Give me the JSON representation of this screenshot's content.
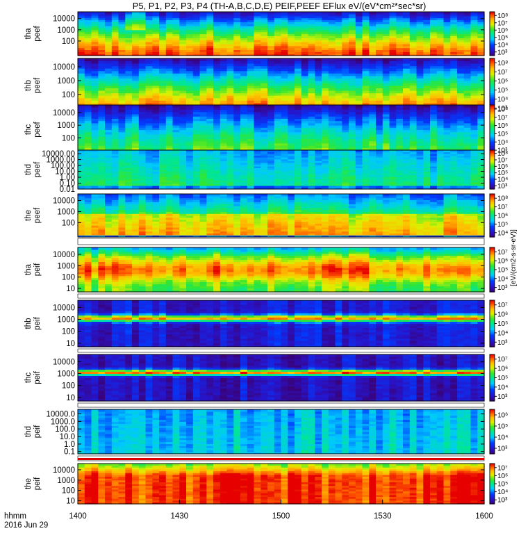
{
  "title": "P5, P1, P2, P3, P4 (TH-A,B,C,D,E) PEIF,PEEF EFlux eV/(eV*cm²*sec*sr)",
  "time_axis": {
    "label_line1": "hhmm",
    "label_line2": "2016 Jun 29",
    "ticks": [
      "1400",
      "1430",
      "1500",
      "1530",
      "1600"
    ]
  },
  "colorbar_unit": "[eV/(cm2-s-sr-eV)]",
  "chart_data": [
    {
      "type": "heatmap",
      "probe": "tha",
      "species": "peef",
      "ylabel": [
        "tha",
        "peef"
      ],
      "ylim": [
        5,
        40000
      ],
      "log": true,
      "y_ticks": [
        "100",
        "1000",
        "10000"
      ],
      "cbar_ticks": [
        "10³",
        "10⁴",
        "10⁵",
        "10⁶",
        "10⁷",
        "10⁸"
      ],
      "cbar_range": [
        3,
        8
      ]
    },
    {
      "type": "heatmap",
      "probe": "thb",
      "species": "peef",
      "ylabel": [
        "thb",
        "peef"
      ],
      "ylim": [
        5,
        40000
      ],
      "log": true,
      "y_ticks": [
        "100",
        "1000",
        "10000"
      ],
      "cbar_ticks": [
        "10³",
        "10⁴",
        "10⁵",
        "10⁶",
        "10⁷",
        "10⁸"
      ],
      "cbar_range": [
        3,
        8
      ]
    },
    {
      "type": "heatmap",
      "probe": "thc",
      "species": "peef",
      "ylabel": [
        "thc",
        "peef"
      ],
      "ylim": [
        5,
        40000
      ],
      "log": true,
      "y_ticks": [
        "100",
        "1000",
        "10000"
      ],
      "cbar_ticks": [
        "10³",
        "10⁴",
        "10⁵",
        "10⁶",
        "10⁷",
        "10⁸"
      ],
      "cbar_range": [
        3,
        8
      ]
    },
    {
      "type": "heatmap",
      "probe": "thd",
      "species": "peef",
      "ylabel": [
        "thd",
        "peef"
      ],
      "ylim": [
        0.01,
        40000
      ],
      "log": true,
      "y_ticks": [
        "0.01",
        "0.10",
        "1.00",
        "10.00",
        "100.00",
        "1000.00",
        "10000.00"
      ],
      "cbar_ticks": [
        "10³",
        "10⁴",
        "10⁵",
        "10⁶",
        "10⁷",
        "10⁸"
      ],
      "cbar_range": [
        3,
        8
      ]
    },
    {
      "type": "heatmap",
      "probe": "the",
      "species": "peef",
      "ylabel": [
        "the",
        "peef"
      ],
      "ylim": [
        5,
        40000
      ],
      "log": true,
      "y_ticks": [
        "100",
        "1000",
        "10000"
      ],
      "cbar_ticks": [
        "10⁴",
        "10⁵",
        "10⁶",
        "10⁷",
        "10⁸"
      ],
      "cbar_range": [
        4,
        8
      ]
    },
    {
      "type": "heatmap",
      "probe": "tha",
      "species": "peif",
      "ylabel": [
        "tha",
        "peif"
      ],
      "ylim": [
        5,
        40000
      ],
      "log": true,
      "y_ticks": [
        "10",
        "100",
        "1000",
        "10000"
      ],
      "cbar_ticks": [
        "10³",
        "10⁴",
        "10⁵",
        "10⁶",
        "10⁷"
      ],
      "cbar_range": [
        3,
        7
      ]
    },
    {
      "type": "heatmap",
      "probe": "thb",
      "species": "peif",
      "ylabel": [
        "thb",
        "peif"
      ],
      "ylim": [
        5,
        40000
      ],
      "log": true,
      "y_ticks": [
        "10",
        "100",
        "1000",
        "10000"
      ],
      "cbar_ticks": [
        "10³",
        "10⁴",
        "10⁵",
        "10⁶",
        "10⁷"
      ],
      "cbar_range": [
        3,
        7
      ]
    },
    {
      "type": "heatmap",
      "probe": "thc",
      "species": "peif",
      "ylabel": [
        "thc",
        "peif"
      ],
      "ylim": [
        5,
        40000
      ],
      "log": true,
      "y_ticks": [
        "10",
        "100",
        "1000",
        "10000"
      ],
      "cbar_ticks": [
        "10³",
        "10⁴",
        "10⁵",
        "10⁶",
        "10⁷"
      ],
      "cbar_range": [
        3,
        7
      ]
    },
    {
      "type": "heatmap",
      "probe": "thd",
      "species": "peif",
      "ylabel": [
        "thd",
        "peif"
      ],
      "ylim": [
        0.05,
        40000
      ],
      "log": true,
      "y_ticks": [
        "0.1",
        "1.0",
        "10.0",
        "100.0",
        "1000.0",
        "10000.0"
      ],
      "cbar_ticks": [
        "10³",
        "10⁴",
        "10⁵",
        "10⁶"
      ],
      "cbar_range": [
        3,
        6
      ]
    },
    {
      "type": "heatmap",
      "probe": "the",
      "species": "peif",
      "ylabel": [
        "the",
        "peif"
      ],
      "ylim": [
        5,
        40000
      ],
      "log": true,
      "y_ticks": [
        "10",
        "100",
        "1000",
        "10000"
      ],
      "cbar_ticks": [
        "10³",
        "10⁴",
        "10⁵",
        "10⁶",
        "10⁷"
      ],
      "cbar_range": [
        3,
        7
      ]
    }
  ]
}
